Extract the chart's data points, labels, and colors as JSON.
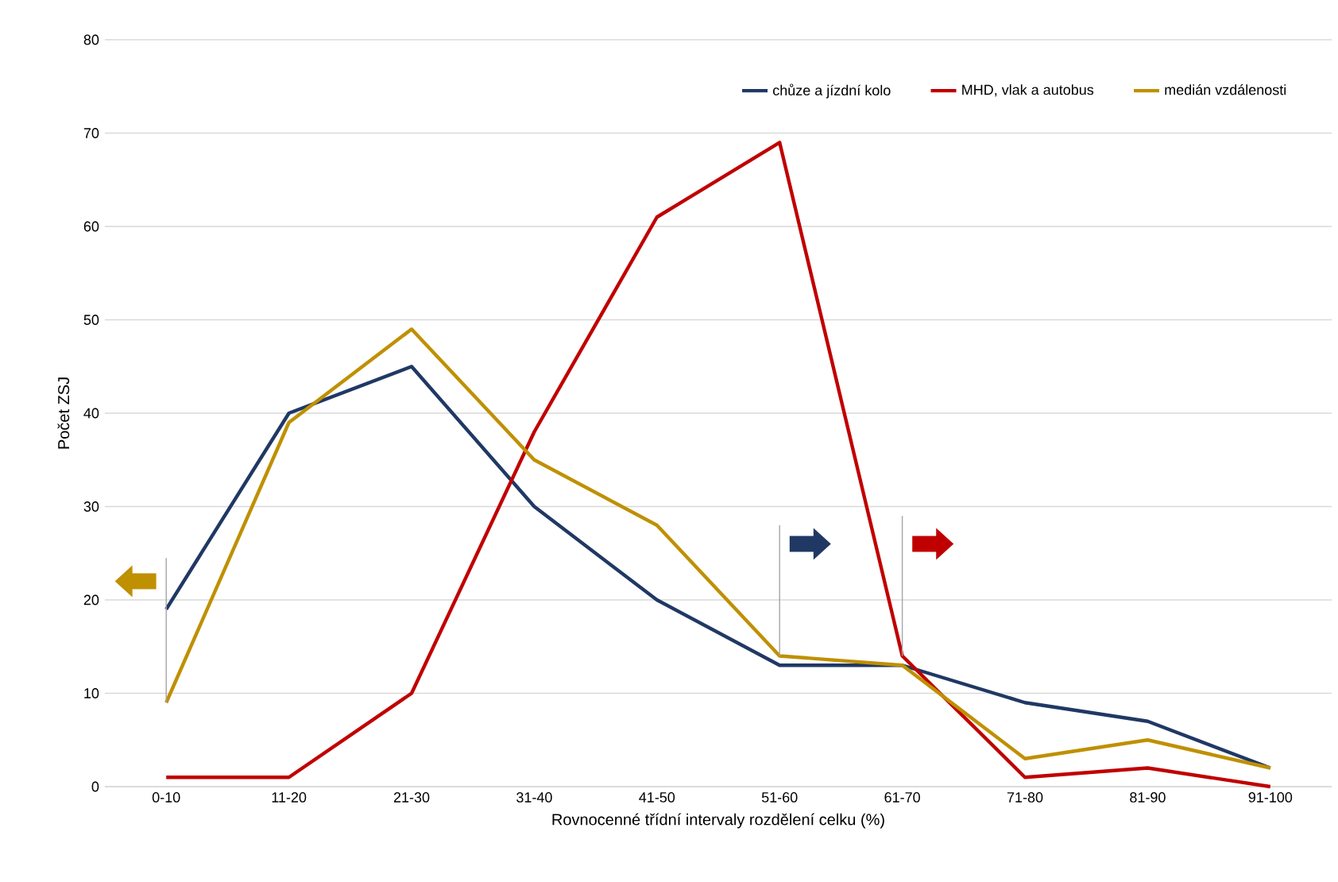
{
  "chart_data": {
    "type": "line",
    "xlabel": "Rovnocenné třídní intervaly rozdělení celku (%)",
    "ylabel": "Počet ZSJ",
    "categories": [
      "0-10",
      "11-20",
      "21-30",
      "31-40",
      "41-50",
      "51-60",
      "61-70",
      "71-80",
      "81-90",
      "91-100"
    ],
    "series": [
      {
        "name": "chůze a jízdní kolo",
        "color": "#203864",
        "values": [
          19,
          40,
          45,
          30,
          20,
          13,
          13,
          9,
          7,
          2
        ]
      },
      {
        "name": "MHD, vlak a autobus",
        "color": "#c00000",
        "values": [
          1,
          1,
          10,
          38,
          61,
          69,
          14,
          1,
          2,
          0
        ]
      },
      {
        "name": "medián vzdálenosti",
        "color": "#bf9000",
        "values": [
          9,
          39,
          49,
          35,
          28,
          14,
          13,
          3,
          5,
          2
        ]
      }
    ],
    "ylim": [
      0,
      80
    ],
    "yticks": [
      0,
      10,
      20,
      30,
      40,
      50,
      60,
      70,
      80
    ],
    "grid": "y",
    "legend": "top right",
    "marker": "none",
    "line_style": "solid"
  }
}
